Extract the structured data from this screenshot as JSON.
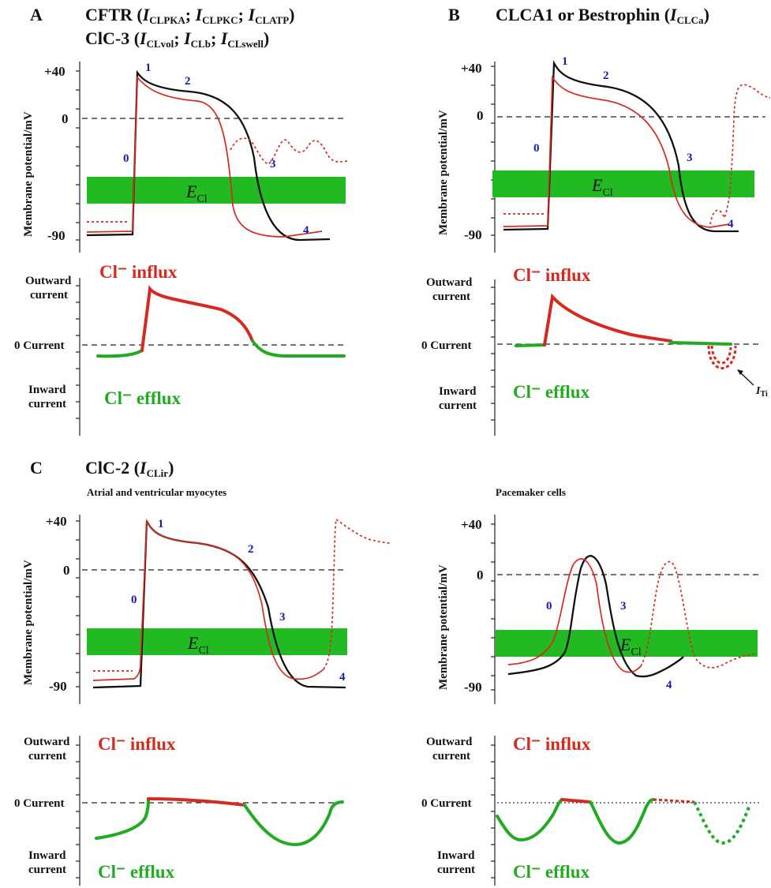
{
  "panels": {
    "A": {
      "letter": "A",
      "title_line1": "CFTR (",
      "title_line1_parts": [
        [
          "I",
          "CLPKA"
        ],
        [
          "I",
          "CLPKC"
        ],
        [
          "I",
          "CLATP"
        ]
      ],
      "title_line2": "ClC-3 (",
      "title_line2_parts": [
        [
          "I",
          "CLvol"
        ],
        [
          "I",
          "CLb"
        ],
        [
          "I",
          "CLswell"
        ]
      ]
    },
    "B": {
      "letter": "B",
      "title": "CLCA1 or Bestrophin (",
      "title_sym": "I",
      "title_sub": "CLCa",
      "iti": "I",
      "iti_sub": "Ti"
    },
    "C": {
      "letter": "C",
      "title": "ClC-2 (",
      "title_sym": "I",
      "title_sub": "CLir",
      "left_subtitle": "Atrial and ventricular myocytes",
      "right_subtitle": "Pacemaker cells"
    }
  },
  "labels": {
    "ylabel": "Membrane potential/mV",
    "tick_top": "+40",
    "tick_zero": "0",
    "tick_bottom": "-90",
    "ecl_sym": "E",
    "ecl_sub": "Cl",
    "outward": "Outward",
    "current": "current",
    "zero_current": "0 Current",
    "inward": "Inward",
    "influx": "Cl⁻ influx",
    "efflux": "Cl⁻ efflux",
    "close_paren": ")",
    "sep": "; "
  },
  "phases": {
    "A": [
      "0",
      "1",
      "2",
      "3",
      "4"
    ],
    "B": [
      "0",
      "1",
      "2",
      "3",
      "4"
    ],
    "C": [
      "0",
      "1",
      "2",
      "3",
      "4"
    ],
    "D": [
      "0",
      "3",
      "4"
    ]
  },
  "colors": {
    "control_trace": "#111111",
    "modified_trace": "#d42a1f",
    "ecl_band": "#22b922",
    "inward_current": "#22aa22",
    "outward_current": "#d42a1f",
    "phase_numbers": "#1a1aa8"
  }
}
